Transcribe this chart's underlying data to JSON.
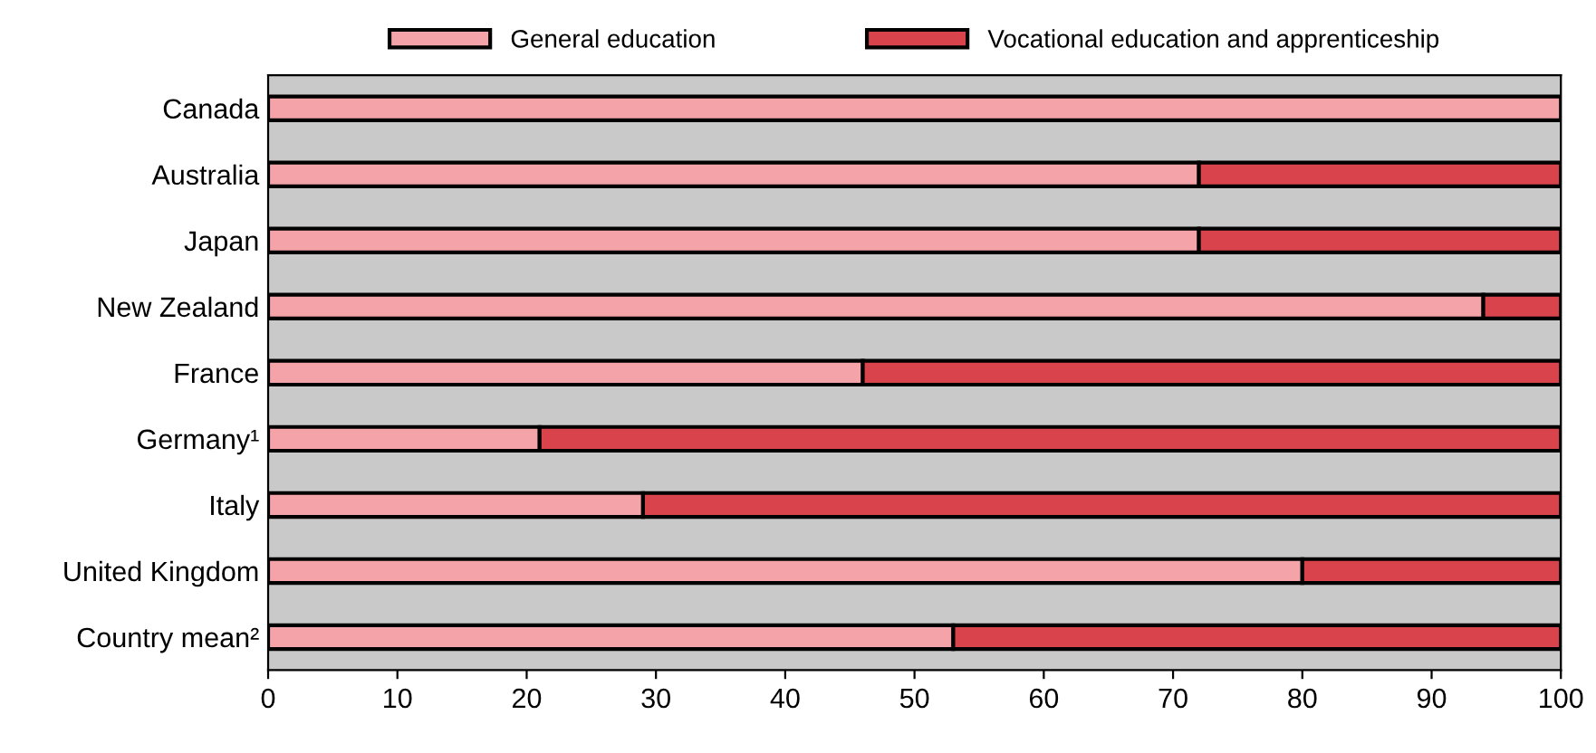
{
  "chart_data": {
    "type": "bar",
    "orientation": "horizontal",
    "stacked": true,
    "categories": [
      "Canada",
      "Australia",
      "Japan",
      "New Zealand",
      "France",
      "Germany¹",
      "Italy",
      "United Kingdom",
      "Country mean²"
    ],
    "series": [
      {
        "name": "General education",
        "color": "#f4a3a8",
        "values": [
          100,
          72,
          72,
          94,
          46,
          21,
          29,
          80,
          53
        ]
      },
      {
        "name": "Vocational education and apprenticeship",
        "color": "#d9434c",
        "values": [
          null,
          28,
          28,
          6,
          54,
          79,
          71,
          20,
          47
        ]
      }
    ],
    "xlim": [
      0,
      100
    ],
    "xticks": [
      0,
      10,
      20,
      30,
      40,
      50,
      60,
      70,
      80,
      90,
      100
    ],
    "legend": "top",
    "grid": false
  }
}
